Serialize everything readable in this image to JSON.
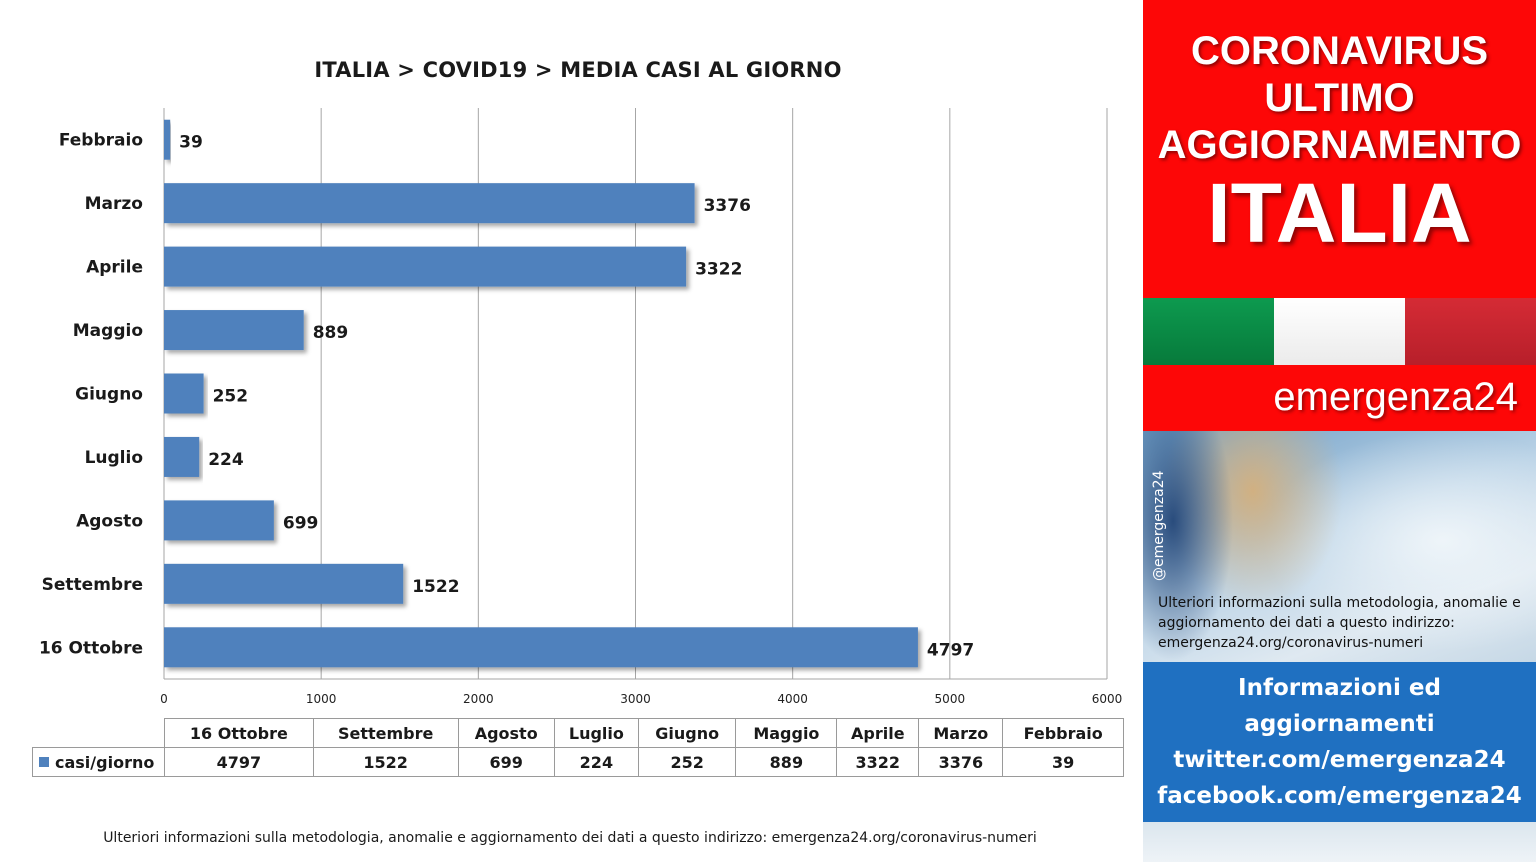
{
  "chart_data": {
    "type": "bar",
    "orientation": "horizontal",
    "title": "ITALIA >  COVID19 > MEDIA CASI AL GIORNO",
    "categories": [
      "Febbraio",
      "Marzo",
      "Aprile",
      "Maggio",
      "Giugno",
      "Luglio",
      "Agosto",
      "Settembre",
      "16 Ottobre"
    ],
    "series": [
      {
        "name": "casi/giorno",
        "values": [
          39,
          3376,
          3322,
          889,
          252,
          224,
          699,
          1522,
          4797
        ]
      }
    ],
    "xlim": [
      0,
      6000
    ],
    "xticks": [
      0,
      1000,
      2000,
      3000,
      4000,
      5000,
      6000
    ],
    "grid": true,
    "bar_color": "#4f81bd",
    "data_table": {
      "columns": [
        "16 Ottobre",
        "Settembre",
        "Agosto",
        "Luglio",
        "Giugno",
        "Maggio",
        "Aprile",
        "Marzo",
        "Febbraio"
      ],
      "row_label": "casi/giorno",
      "values": [
        "4797",
        "1522",
        "699",
        "224",
        "252",
        "889",
        "3322",
        "3376",
        "39"
      ]
    }
  },
  "footer_note": "Ulteriori informazioni sulla metodologia, anomalie e aggiornamento dei dati a questo indirizzo: emergenza24.org/coronavirus-numeri",
  "panel": {
    "header_lines": [
      "CORONAVIRUS",
      "ULTIMO",
      "AGGIORNAMENTO"
    ],
    "country": "ITALIA",
    "flag_colors": [
      "#0d9a4f",
      "#ffffff",
      "#d52b35"
    ],
    "brand": "emergenza24",
    "handle": "@emergenza24",
    "note": "Ulteriori informazioni sulla metodologia, anomalie e aggiornamento dei dati a questo indirizzo: emergenza24.org/coronavirus-numeri",
    "info_lines": [
      "Informazioni ed",
      "aggiornamenti",
      "twitter.com/emergenza24",
      "facebook.com/emergenza24"
    ],
    "accent_red": "#fd0707",
    "accent_blue": "#1f70c1"
  }
}
